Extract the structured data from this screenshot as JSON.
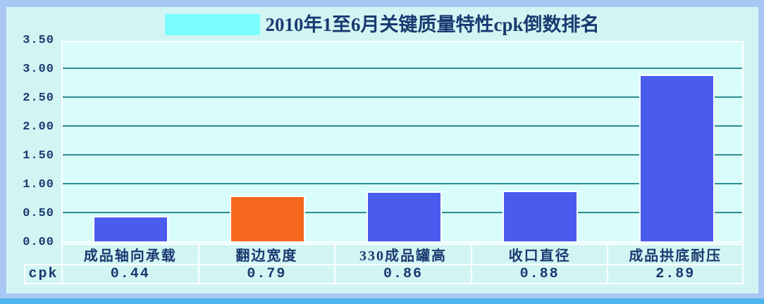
{
  "chart_data": {
    "type": "bar",
    "title": "2010年1至6月关键质量特性cpk倒数排名",
    "categories": [
      "成品轴向承载",
      "翻边宽度",
      "330成品罐高",
      "收口直径",
      "成品拱底耐压"
    ],
    "series": [
      {
        "name": "cpk",
        "values": [
          0.44,
          0.79,
          0.86,
          0.88,
          2.89
        ]
      }
    ],
    "value_labels": [
      "0.44",
      "0.79",
      "0.86",
      "0.88",
      "2.89"
    ],
    "bar_colors": [
      "#4a5cee",
      "#f5671d",
      "#4a5cee",
      "#4a5cee",
      "#4a5cee"
    ],
    "ylim": [
      0,
      3.5
    ],
    "ytick_interval": 0.5,
    "ytick_labels": [
      "0.00",
      "0.50",
      "1.00",
      "1.50",
      "2.00",
      "2.50",
      "3.00",
      "3.50"
    ],
    "grid": true,
    "legend_position": "none",
    "data_table_row_header": "cpk",
    "colors": {
      "frame_border": "#a9c7f5",
      "bottom_stripe": "#4eb6ef",
      "canvas_bg": "#d2f5f3",
      "plot_bg": "#d9fdfb",
      "gridline": "#2b8e8e",
      "text": "#193a70",
      "title_swatch": "#79fdfd",
      "cell_border": "#ffffff"
    }
  }
}
